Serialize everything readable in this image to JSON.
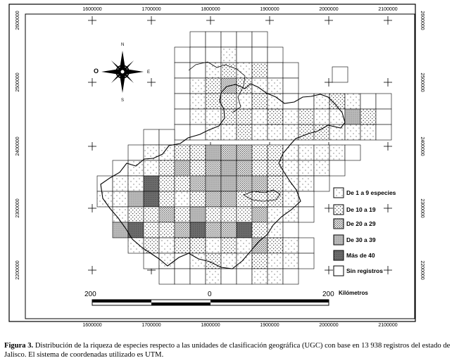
{
  "map": {
    "x_ticks": [
      "1600000",
      "1700000",
      "1800000",
      "1900000",
      "2000000",
      "2100000"
    ],
    "y_ticks": [
      "2600000",
      "2500000",
      "2400000",
      "2300000",
      "2200000"
    ],
    "compass": {
      "north": "N",
      "south": "S",
      "east": "E",
      "west": "O"
    },
    "scale": {
      "left": "200",
      "middle": "0",
      "right": "200",
      "unit": "Kilómetros"
    },
    "legend": [
      {
        "label": "De 1 a 9 especies",
        "pattern": "dots-sparse"
      },
      {
        "label": "De 10 a 19",
        "pattern": "dots-medium"
      },
      {
        "label": "De 20 a 29",
        "pattern": "dots-dense"
      },
      {
        "label": "De 30 a 39",
        "pattern": "gray-light"
      },
      {
        "label": "Más de 40",
        "pattern": "gray-dark"
      },
      {
        "label": "Sin registros",
        "pattern": "empty"
      }
    ],
    "colors": {
      "dark": "#6a6a6a",
      "light": "#c8c8c8",
      "line": "#000000"
    }
  },
  "caption": {
    "label": "Figura 3.",
    "text": " Distribución de la riqueza de especies respecto a las unidades de clasificación geográfica (UGC) con base en  13 938 registros del estado de Jalisco. El sistema de coordenadas utilizado es UTM."
  }
}
